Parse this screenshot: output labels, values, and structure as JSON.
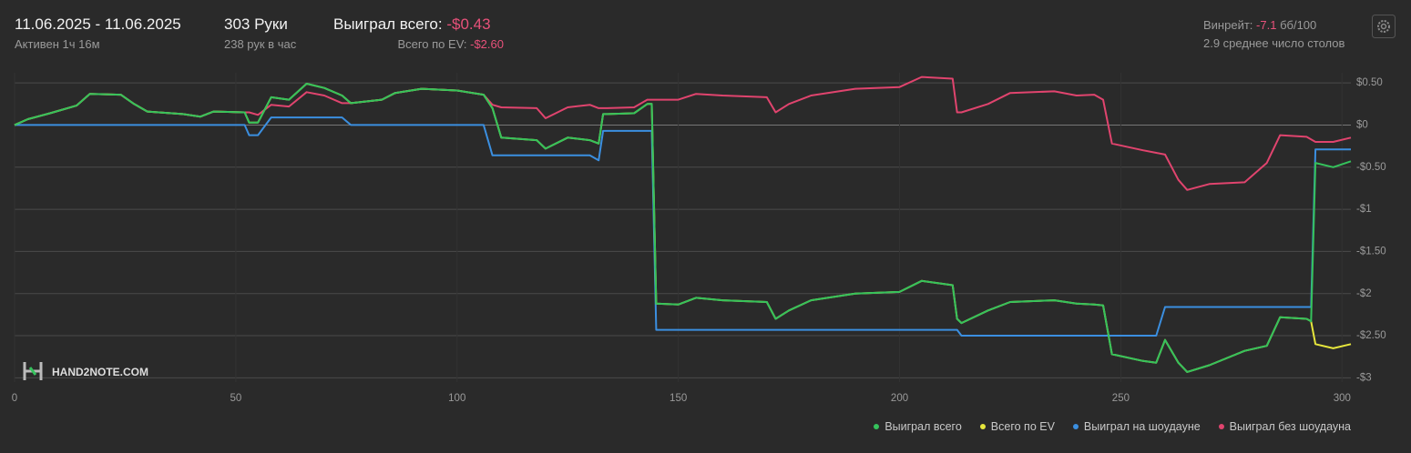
{
  "header": {
    "date_range": "11.06.2025 - 11.06.2025",
    "active": "Активен 1ч 16м",
    "hands": "303 Руки",
    "hands_per_hour": "238 рук в час",
    "won_label": "Выиграл всего:",
    "won_value": "-$0.43",
    "ev_label": "Всего по EV:",
    "ev_value": "-$2.60",
    "winrate_label": "Винрейт:",
    "winrate_value": "-7.1",
    "winrate_unit": "бб/100",
    "tables": "2.9 среднее число столов"
  },
  "watermark": "HAND2NOTE.COM",
  "chart_data": {
    "type": "line",
    "x": [
      0,
      3,
      8,
      14,
      17,
      24,
      27,
      30,
      38,
      42,
      45,
      52,
      53,
      55,
      58,
      62,
      66,
      70,
      74,
      76,
      83,
      86,
      92,
      100,
      106,
      108,
      110,
      118,
      120,
      125,
      130,
      132,
      133,
      134,
      140,
      143,
      144,
      145,
      150,
      154,
      160,
      170,
      172,
      175,
      180,
      190,
      200,
      205,
      212,
      213,
      214,
      220,
      225,
      235,
      240,
      244,
      246,
      248,
      255,
      258,
      260,
      263,
      265,
      270,
      278,
      283,
      286,
      292,
      293,
      294,
      298,
      302
    ],
    "xlim": [
      0,
      302
    ],
    "xticks": [
      0,
      50,
      100,
      150,
      200,
      250,
      300
    ],
    "ylim": [
      -3.05,
      0.62
    ],
    "yticks": [
      {
        "value": 0.5,
        "label": "$0.50"
      },
      {
        "value": 0,
        "label": "$0"
      },
      {
        "value": -0.5,
        "label": "-$0.50"
      },
      {
        "value": -1,
        "label": "-$1"
      },
      {
        "value": -1.5,
        "label": "-$1.50"
      },
      {
        "value": -2,
        "label": "-$2"
      },
      {
        "value": -2.5,
        "label": "-$2.50"
      },
      {
        "value": -3,
        "label": "-$3"
      }
    ],
    "grid": true,
    "series": [
      {
        "name": "Выиграл без шоудауна",
        "color": "#e0446e",
        "values": [
          0,
          0.07,
          0.14,
          0.23,
          0.37,
          0.36,
          0.25,
          0.16,
          0.13,
          0.1,
          0.16,
          0.15,
          0.15,
          0.12,
          0.24,
          0.22,
          0.39,
          0.35,
          0.26,
          0.26,
          0.3,
          0.38,
          0.43,
          0.41,
          0.36,
          0.24,
          0.21,
          0.2,
          0.08,
          0.21,
          0.24,
          0.2,
          0.2,
          0.2,
          0.21,
          0.3,
          0.3,
          0.3,
          0.3,
          0.37,
          0.35,
          0.33,
          0.15,
          0.25,
          0.35,
          0.43,
          0.45,
          0.57,
          0.55,
          0.15,
          0.15,
          0.25,
          0.38,
          0.4,
          0.35,
          0.36,
          0.3,
          -0.22,
          -0.3,
          -0.33,
          -0.35,
          -0.65,
          -0.77,
          -0.7,
          -0.68,
          -0.45,
          -0.12,
          -0.14,
          -0.17,
          -0.2,
          -0.2,
          -0.15
        ]
      },
      {
        "name": "Выиграл на шоудауне",
        "color": "#3b8fe0",
        "values": [
          0,
          0,
          0,
          0,
          0,
          0,
          0,
          0,
          0,
          0,
          0,
          0,
          -0.12,
          -0.12,
          0.09,
          0.09,
          0.09,
          0.09,
          0.09,
          0,
          0,
          0,
          0,
          0,
          0,
          -0.36,
          -0.36,
          -0.36,
          -0.36,
          -0.36,
          -0.36,
          -0.42,
          -0.07,
          -0.07,
          -0.07,
          -0.07,
          -0.07,
          -2.43,
          -2.43,
          -2.43,
          -2.43,
          -2.43,
          -2.43,
          -2.43,
          -2.43,
          -2.43,
          -2.43,
          -2.43,
          -2.43,
          -2.43,
          -2.5,
          -2.5,
          -2.5,
          -2.5,
          -2.5,
          -2.5,
          -2.5,
          -2.5,
          -2.5,
          -2.5,
          -2.16,
          -2.16,
          -2.16,
          -2.16,
          -2.16,
          -2.16,
          -2.16,
          -2.16,
          -2.16,
          -0.29,
          -0.29,
          -0.29
        ]
      },
      {
        "name": "Всего по EV",
        "color": "#e6e63c",
        "values": [
          0,
          0.07,
          0.14,
          0.23,
          0.37,
          0.36,
          0.25,
          0.16,
          0.13,
          0.1,
          0.16,
          0.15,
          0.03,
          0.03,
          0.33,
          0.3,
          0.49,
          0.44,
          0.35,
          0.26,
          0.3,
          0.38,
          0.43,
          0.41,
          0.36,
          0.2,
          -0.15,
          -0.18,
          -0.28,
          -0.15,
          -0.18,
          -0.22,
          0.13,
          0.13,
          0.14,
          0.25,
          0.25,
          -2.12,
          -2.13,
          -2.05,
          -2.08,
          -2.1,
          -2.3,
          -2.2,
          -2.08,
          -2.0,
          -1.98,
          -1.85,
          -1.9,
          -2.3,
          -2.35,
          -2.2,
          -2.1,
          -2.08,
          -2.12,
          -2.13,
          -2.14,
          -2.72,
          -2.8,
          -2.82,
          -2.55,
          -2.82,
          -2.93,
          -2.85,
          -2.68,
          -2.62,
          -2.28,
          -2.3,
          -2.33,
          -2.6,
          -2.65,
          -2.6
        ]
      },
      {
        "name": "Выиграл всего",
        "color": "#35c25c",
        "values": [
          0,
          0.07,
          0.14,
          0.23,
          0.37,
          0.36,
          0.25,
          0.16,
          0.13,
          0.1,
          0.16,
          0.15,
          0.03,
          0.03,
          0.33,
          0.3,
          0.49,
          0.44,
          0.35,
          0.26,
          0.3,
          0.38,
          0.43,
          0.41,
          0.36,
          0.2,
          -0.15,
          -0.18,
          -0.28,
          -0.15,
          -0.18,
          -0.22,
          0.13,
          0.13,
          0.14,
          0.25,
          0.25,
          -2.12,
          -2.13,
          -2.05,
          -2.08,
          -2.1,
          -2.3,
          -2.2,
          -2.08,
          -2.0,
          -1.98,
          -1.85,
          -1.9,
          -2.3,
          -2.35,
          -2.2,
          -2.1,
          -2.08,
          -2.12,
          -2.13,
          -2.14,
          -2.72,
          -2.8,
          -2.82,
          -2.55,
          -2.82,
          -2.93,
          -2.85,
          -2.68,
          -2.62,
          -2.28,
          -2.3,
          -2.33,
          -0.45,
          -0.5,
          -0.43
        ]
      }
    ],
    "legend_order": [
      3,
      2,
      1,
      0
    ]
  }
}
